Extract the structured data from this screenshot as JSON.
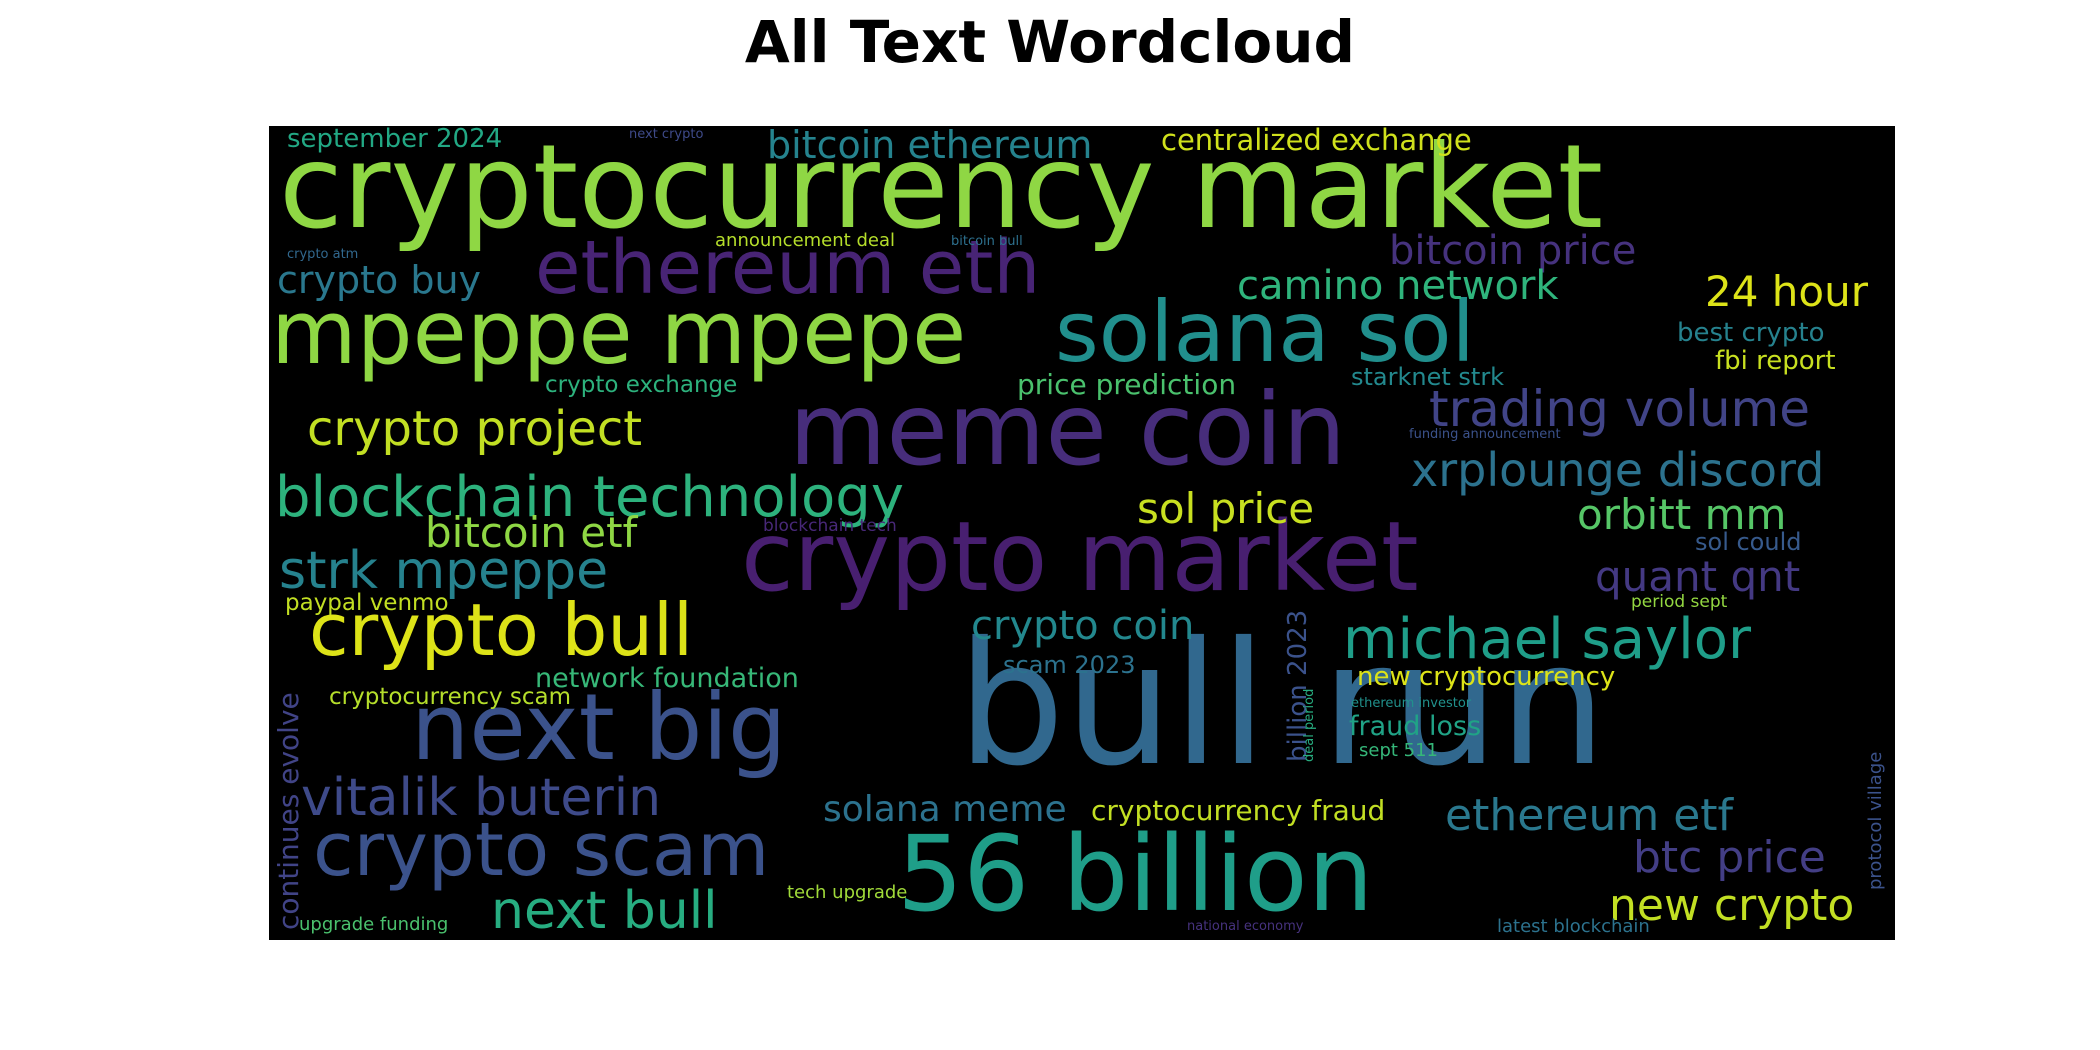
{
  "title": "All Text Wordcloud",
  "colors": {
    "background": "#000000",
    "palette": "viridis"
  },
  "words": [
    {
      "text": "cryptocurrency market",
      "color": "#8fd744",
      "weight": 1.0
    },
    {
      "text": "bull run",
      "color": "#31688e",
      "weight": 1.0
    },
    {
      "text": "56 billion",
      "color": "#1f9e89",
      "weight": 0.85
    },
    {
      "text": "meme coin",
      "color": "#472d7b",
      "weight": 0.8
    },
    {
      "text": "crypto market",
      "color": "#481f70",
      "weight": 0.8
    },
    {
      "text": "mpeppe mpepe",
      "color": "#8fd744",
      "weight": 0.8
    },
    {
      "text": "solana sol",
      "color": "#218f8d",
      "weight": 0.75
    },
    {
      "text": "next big",
      "color": "#3b528b",
      "weight": 0.75
    },
    {
      "text": "ethereum eth",
      "color": "#482475",
      "weight": 0.65
    },
    {
      "text": "crypto scam",
      "color": "#3b528b",
      "weight": 0.65
    },
    {
      "text": "crypto bull",
      "color": "#dde318",
      "weight": 0.6
    },
    {
      "text": "blockchain technology",
      "color": "#2db27d",
      "weight": 0.5
    },
    {
      "text": "michael saylor",
      "color": "#1f9e89",
      "weight": 0.5
    },
    {
      "text": "vitalik buterin",
      "color": "#3e4a89",
      "weight": 0.45
    },
    {
      "text": "next bull",
      "color": "#27ad81",
      "weight": 0.45
    },
    {
      "text": "trading volume",
      "color": "#414487",
      "weight": 0.45
    },
    {
      "text": "strk mpeppe",
      "color": "#26828e",
      "weight": 0.45
    },
    {
      "text": "crypto project",
      "color": "#c2df23",
      "weight": 0.42
    },
    {
      "text": "xrplounge discord",
      "color": "#2c728e",
      "weight": 0.4
    },
    {
      "text": "ethereum etf",
      "color": "#2a788e",
      "weight": 0.38
    },
    {
      "text": "new crypto",
      "color": "#c2df23",
      "weight": 0.38
    },
    {
      "text": "btc price",
      "color": "#433e85",
      "weight": 0.37
    },
    {
      "text": "crypto coin",
      "color": "#23888e",
      "weight": 0.35
    },
    {
      "text": "quant qnt",
      "color": "#443983",
      "weight": 0.35
    },
    {
      "text": "orbitt mm",
      "color": "#56c667",
      "weight": 0.35
    },
    {
      "text": "sol price",
      "color": "#c8e020",
      "weight": 0.35
    },
    {
      "text": "bitcoin etf",
      "color": "#8fd744",
      "weight": 0.35
    },
    {
      "text": "bitcoin price",
      "color": "#46327e",
      "weight": 0.35
    },
    {
      "text": "camino network",
      "color": "#2fb47c",
      "weight": 0.33
    },
    {
      "text": "24 hour",
      "color": "#dde318",
      "weight": 0.33
    },
    {
      "text": "crypto buy",
      "color": "#2a788e",
      "weight": 0.32
    },
    {
      "text": "bitcoin ethereum",
      "color": "#25838e",
      "weight": 0.32
    },
    {
      "text": "solana meme",
      "color": "#2c728e",
      "weight": 0.3
    },
    {
      "text": "price prediction",
      "color": "#4ac16d",
      "weight": 0.25
    },
    {
      "text": "centralized exchange",
      "color": "#d0e11c",
      "weight": 0.25
    },
    {
      "text": "cryptocurrency fraud",
      "color": "#c2df23",
      "weight": 0.25
    },
    {
      "text": "network foundation",
      "color": "#37b878",
      "weight": 0.24
    },
    {
      "text": "new cryptocurrency",
      "color": "#dde318",
      "weight": 0.23
    },
    {
      "text": "fraud loss",
      "color": "#20a386",
      "weight": 0.23
    },
    {
      "text": "september 2024",
      "color": "#22a884",
      "weight": 0.23
    },
    {
      "text": "fbi report",
      "color": "#c8e020",
      "weight": 0.22
    },
    {
      "text": "best crypto",
      "color": "#26828e",
      "weight": 0.22
    },
    {
      "text": "scam 2023",
      "color": "#2c728e",
      "weight": 0.22
    },
    {
      "text": "sol could",
      "color": "#375a8c",
      "weight": 0.2
    },
    {
      "text": "starknet strk",
      "color": "#23898e",
      "weight": 0.2
    },
    {
      "text": "crypto exchange",
      "color": "#2db27d",
      "weight": 0.2
    },
    {
      "text": "cryptocurrency scam",
      "color": "#b5de2b",
      "weight": 0.2
    },
    {
      "text": "paypal venmo",
      "color": "#c2df23",
      "weight": 0.2
    },
    {
      "text": "billion 2023",
      "color": "#3b528b",
      "weight": 0.22
    },
    {
      "text": "continues evolve",
      "color": "#414487",
      "weight": 0.22
    },
    {
      "text": "protocol village",
      "color": "#3b528b",
      "weight": 0.15
    },
    {
      "text": "announcement deal",
      "color": "#b5de2b",
      "weight": 0.15
    },
    {
      "text": "tech upgrade",
      "color": "#a0da39",
      "weight": 0.15
    },
    {
      "text": "upgrade funding",
      "color": "#4ac16d",
      "weight": 0.15
    },
    {
      "text": "latest blockchain",
      "color": "#2c728e",
      "weight": 0.15
    },
    {
      "text": "sept 511",
      "color": "#35b779",
      "weight": 0.15
    },
    {
      "text": "period sept",
      "color": "#93d741",
      "weight": 0.14
    },
    {
      "text": "blockchain tech",
      "color": "#482878",
      "weight": 0.14
    },
    {
      "text": "next crypto",
      "color": "#3e4a89",
      "weight": 0.1
    },
    {
      "text": "crypto atm",
      "color": "#31688e",
      "weight": 0.1
    },
    {
      "text": "bitcoin bull",
      "color": "#2d708e",
      "weight": 0.1
    },
    {
      "text": "funding announcement",
      "color": "#3b528b",
      "weight": 0.1
    },
    {
      "text": "ethereum investor",
      "color": "#21918c",
      "weight": 0.1
    },
    {
      "text": "deal period",
      "color": "#28ae80",
      "weight": 0.1
    },
    {
      "text": "national economy",
      "color": "#46327e",
      "weight": 0.1
    }
  ]
}
